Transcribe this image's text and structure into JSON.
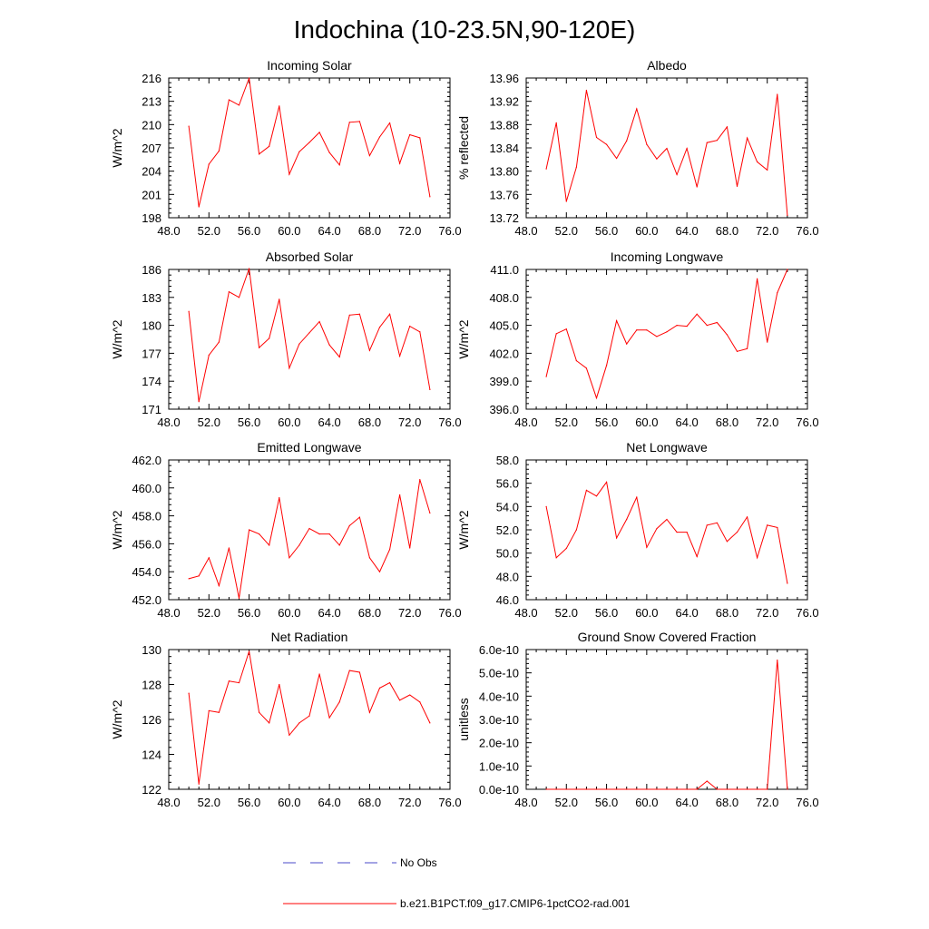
{
  "page_title": "Indochina (10-23.5N,90-120E)",
  "legend": [
    {
      "label": "No Obs",
      "color": "#4a4ac8",
      "dash": true
    },
    {
      "label": "b.e21.B1PCT.f09_g17.CMIP6-1pctCO2-rad.001",
      "color": "#ff0000",
      "dash": false
    }
  ],
  "chart_data": [
    {
      "type": "line",
      "title": "Incoming Solar",
      "ylabel": "W/m^2",
      "xlim": [
        48,
        76
      ],
      "ylim": [
        198,
        216
      ],
      "xticks": [
        48,
        52,
        56,
        60,
        64,
        68,
        72,
        76
      ],
      "xtick_labels": [
        "48.0",
        "52.0",
        "56.0",
        "60.0",
        "64.0",
        "68.0",
        "72.0",
        "76.0"
      ],
      "yticks": [
        198,
        201,
        204,
        207,
        210,
        213,
        216
      ],
      "ytick_labels": [
        "198",
        "201",
        "204",
        "207",
        "210",
        "213",
        "216"
      ],
      "x": [
        50,
        51,
        52,
        53,
        54,
        55,
        56,
        57,
        58,
        59,
        60,
        61,
        62,
        63,
        64,
        65,
        66,
        67,
        68,
        69,
        70,
        71,
        72,
        73,
        74
      ],
      "series": [
        {
          "name": "b.e21.B1PCT.f09_g17.CMIP6-1pctCO2-rad.001",
          "color": "#ff0000",
          "values": [
            209.8,
            199.4,
            204.9,
            206.6,
            213.2,
            212.5,
            216.0,
            206.2,
            207.2,
            212.4,
            203.6,
            206.5,
            207.7,
            209.0,
            206.4,
            204.8,
            210.3,
            210.4,
            206.0,
            208.4,
            210.2,
            205.0,
            208.7,
            208.3,
            200.7
          ]
        }
      ]
    },
    {
      "type": "line",
      "title": "Albedo",
      "ylabel": "% reflected",
      "xlim": [
        48,
        76
      ],
      "ylim": [
        13.72,
        13.96
      ],
      "xticks": [
        48,
        52,
        56,
        60,
        64,
        68,
        72,
        76
      ],
      "xtick_labels": [
        "48.0",
        "52.0",
        "56.0",
        "60.0",
        "64.0",
        "68.0",
        "72.0",
        "76.0"
      ],
      "yticks": [
        13.72,
        13.76,
        13.8,
        13.84,
        13.88,
        13.92,
        13.96
      ],
      "ytick_labels": [
        "13.72",
        "13.76",
        "13.80",
        "13.84",
        "13.88",
        "13.92",
        "13.96"
      ],
      "x": [
        50,
        51,
        52,
        53,
        54,
        55,
        56,
        57,
        58,
        59,
        60,
        61,
        62,
        63,
        64,
        65,
        66,
        67,
        68,
        69,
        70,
        71,
        72,
        73,
        74
      ],
      "series": [
        {
          "name": "b.e21.B1PCT.f09_g17.CMIP6-1pctCO2-rad.001",
          "color": "#ff0000",
          "values": [
            13.804,
            13.883,
            13.748,
            13.807,
            13.939,
            13.858,
            13.846,
            13.822,
            13.852,
            13.907,
            13.846,
            13.821,
            13.839,
            13.794,
            13.839,
            13.773,
            13.849,
            13.853,
            13.876,
            13.774,
            13.857,
            13.816,
            13.802,
            13.932,
            13.724
          ]
        }
      ]
    },
    {
      "type": "line",
      "title": "Absorbed Solar",
      "ylabel": "W/m^2",
      "xlim": [
        48,
        76
      ],
      "ylim": [
        171,
        186
      ],
      "xticks": [
        48,
        52,
        56,
        60,
        64,
        68,
        72,
        76
      ],
      "xtick_labels": [
        "48.0",
        "52.0",
        "56.0",
        "60.0",
        "64.0",
        "68.0",
        "72.0",
        "76.0"
      ],
      "yticks": [
        171,
        174,
        177,
        180,
        183,
        186
      ],
      "ytick_labels": [
        "171",
        "174",
        "177",
        "180",
        "183",
        "186"
      ],
      "x": [
        50,
        51,
        52,
        53,
        54,
        55,
        56,
        57,
        58,
        59,
        60,
        61,
        62,
        63,
        64,
        65,
        66,
        67,
        68,
        69,
        70,
        71,
        72,
        73,
        74
      ],
      "series": [
        {
          "name": "b.e21.B1PCT.f09_g17.CMIP6-1pctCO2-rad.001",
          "color": "#ff0000",
          "values": [
            181.5,
            171.8,
            176.8,
            178.2,
            183.6,
            183.0,
            186.1,
            177.6,
            178.6,
            182.8,
            175.4,
            178.0,
            179.2,
            180.4,
            177.9,
            176.6,
            181.1,
            181.2,
            177.3,
            179.8,
            181.2,
            176.7,
            179.9,
            179.3,
            173.1
          ]
        }
      ]
    },
    {
      "type": "line",
      "title": "Incoming Longwave",
      "ylabel": "W/m^2",
      "xlim": [
        48,
        76
      ],
      "ylim": [
        396,
        411
      ],
      "xticks": [
        48,
        52,
        56,
        60,
        64,
        68,
        72,
        76
      ],
      "xtick_labels": [
        "48.0",
        "52.0",
        "56.0",
        "60.0",
        "64.0",
        "68.0",
        "72.0",
        "76.0"
      ],
      "yticks": [
        396,
        399,
        402,
        405,
        408,
        411
      ],
      "ytick_labels": [
        "396.0",
        "399.0",
        "402.0",
        "405.0",
        "408.0",
        "411.0"
      ],
      "x": [
        50,
        51,
        52,
        53,
        54,
        55,
        56,
        57,
        58,
        59,
        60,
        61,
        62,
        63,
        64,
        65,
        66,
        67,
        68,
        69,
        70,
        71,
        72,
        73,
        74
      ],
      "series": [
        {
          "name": "b.e21.B1PCT.f09_g17.CMIP6-1pctCO2-rad.001",
          "color": "#ff0000",
          "values": [
            399.5,
            404.1,
            404.6,
            401.2,
            400.4,
            397.2,
            400.7,
            405.5,
            403.0,
            404.5,
            404.5,
            403.8,
            404.3,
            405.0,
            404.9,
            406.2,
            405.0,
            405.3,
            404.0,
            402.2,
            402.5,
            410.0,
            403.2,
            408.5,
            411.0
          ]
        }
      ]
    },
    {
      "type": "line",
      "title": "Emitted Longwave",
      "ylabel": "W/m^2",
      "xlim": [
        48,
        76
      ],
      "ylim": [
        452,
        462
      ],
      "xticks": [
        48,
        52,
        56,
        60,
        64,
        68,
        72,
        76
      ],
      "xtick_labels": [
        "48.0",
        "52.0",
        "56.0",
        "60.0",
        "64.0",
        "68.0",
        "72.0",
        "76.0"
      ],
      "yticks": [
        452,
        454,
        456,
        458,
        460,
        462
      ],
      "ytick_labels": [
        "452.0",
        "454.0",
        "456.0",
        "458.0",
        "460.0",
        "462.0"
      ],
      "x": [
        50,
        51,
        52,
        53,
        54,
        55,
        56,
        57,
        58,
        59,
        60,
        61,
        62,
        63,
        64,
        65,
        66,
        67,
        68,
        69,
        70,
        71,
        72,
        73,
        74
      ],
      "series": [
        {
          "name": "b.e21.B1PCT.f09_g17.CMIP6-1pctCO2-rad.001",
          "color": "#ff0000",
          "values": [
            453.5,
            453.7,
            455.0,
            453.0,
            455.7,
            452.1,
            457.0,
            456.7,
            455.9,
            459.3,
            455.0,
            455.9,
            457.1,
            456.7,
            456.7,
            455.9,
            457.3,
            457.9,
            455.0,
            454.0,
            455.6,
            459.5,
            455.7,
            460.6,
            458.2
          ]
        }
      ]
    },
    {
      "type": "line",
      "title": "Net Longwave",
      "ylabel": "W/m^2",
      "xlim": [
        48,
        76
      ],
      "ylim": [
        46,
        58
      ],
      "xticks": [
        48,
        52,
        56,
        60,
        64,
        68,
        72,
        76
      ],
      "xtick_labels": [
        "48.0",
        "52.0",
        "56.0",
        "60.0",
        "64.0",
        "68.0",
        "72.0",
        "76.0"
      ],
      "yticks": [
        46,
        48,
        50,
        52,
        54,
        56,
        58
      ],
      "ytick_labels": [
        "46.0",
        "48.0",
        "50.0",
        "52.0",
        "54.0",
        "56.0",
        "58.0"
      ],
      "x": [
        50,
        51,
        52,
        53,
        54,
        55,
        56,
        57,
        58,
        59,
        60,
        61,
        62,
        63,
        64,
        65,
        66,
        67,
        68,
        69,
        70,
        71,
        72,
        73,
        74
      ],
      "series": [
        {
          "name": "b.e21.B1PCT.f09_g17.CMIP6-1pctCO2-rad.001",
          "color": "#ff0000",
          "values": [
            54.0,
            49.6,
            50.4,
            52.0,
            55.4,
            54.9,
            56.1,
            51.3,
            52.9,
            54.8,
            50.5,
            52.1,
            52.9,
            51.8,
            51.8,
            49.7,
            52.4,
            52.6,
            51.0,
            51.8,
            53.1,
            49.6,
            52.4,
            52.2,
            47.4
          ]
        }
      ]
    },
    {
      "type": "line",
      "title": "Net Radiation",
      "ylabel": "W/m^2",
      "xlim": [
        48,
        76
      ],
      "ylim": [
        122,
        130
      ],
      "xticks": [
        48,
        52,
        56,
        60,
        64,
        68,
        72,
        76
      ],
      "xtick_labels": [
        "48.0",
        "52.0",
        "56.0",
        "60.0",
        "64.0",
        "68.0",
        "72.0",
        "76.0"
      ],
      "yticks": [
        122,
        124,
        126,
        128,
        130
      ],
      "ytick_labels": [
        "122",
        "124",
        "126",
        "128",
        "130"
      ],
      "x": [
        50,
        51,
        52,
        53,
        54,
        55,
        56,
        57,
        58,
        59,
        60,
        61,
        62,
        63,
        64,
        65,
        66,
        67,
        68,
        69,
        70,
        71,
        72,
        73,
        74
      ],
      "series": [
        {
          "name": "b.e21.B1PCT.f09_g17.CMIP6-1pctCO2-rad.001",
          "color": "#ff0000",
          "values": [
            127.5,
            122.3,
            126.5,
            126.4,
            128.2,
            128.1,
            129.9,
            126.4,
            125.8,
            128.0,
            125.1,
            125.8,
            126.2,
            128.6,
            126.1,
            127.0,
            128.8,
            128.7,
            126.4,
            127.8,
            128.1,
            127.1,
            127.4,
            127.0,
            125.8
          ]
        }
      ]
    },
    {
      "type": "line",
      "title": "Ground Snow Covered Fraction",
      "ylabel": "unitless",
      "xlim": [
        48,
        76
      ],
      "ylim": [
        0,
        6e-10
      ],
      "xticks": [
        48,
        52,
        56,
        60,
        64,
        68,
        72,
        76
      ],
      "xtick_labels": [
        "48.0",
        "52.0",
        "56.0",
        "60.0",
        "64.0",
        "68.0",
        "72.0",
        "76.0"
      ],
      "yticks": [
        0,
        1e-10,
        2e-10,
        3e-10,
        4e-10,
        5e-10,
        6e-10
      ],
      "ytick_labels": [
        "0.0e-10",
        "1.0e-10",
        "2.0e-10",
        "3.0e-10",
        "4.0e-10",
        "5.0e-10",
        "6.0e-10"
      ],
      "x": [
        50,
        51,
        52,
        53,
        54,
        55,
        56,
        57,
        58,
        59,
        60,
        61,
        62,
        63,
        64,
        65,
        66,
        67,
        68,
        69,
        70,
        71,
        72,
        73,
        74
      ],
      "series": [
        {
          "name": "b.e21.B1PCT.f09_g17.CMIP6-1pctCO2-rad.001",
          "color": "#ff0000",
          "values": [
            0,
            0,
            0,
            0,
            0,
            0,
            0,
            0,
            0,
            0,
            0,
            0,
            0,
            0,
            0,
            0,
            3.5e-11,
            0,
            0,
            0,
            0,
            0,
            0,
            5.55e-10,
            0
          ]
        }
      ]
    }
  ]
}
